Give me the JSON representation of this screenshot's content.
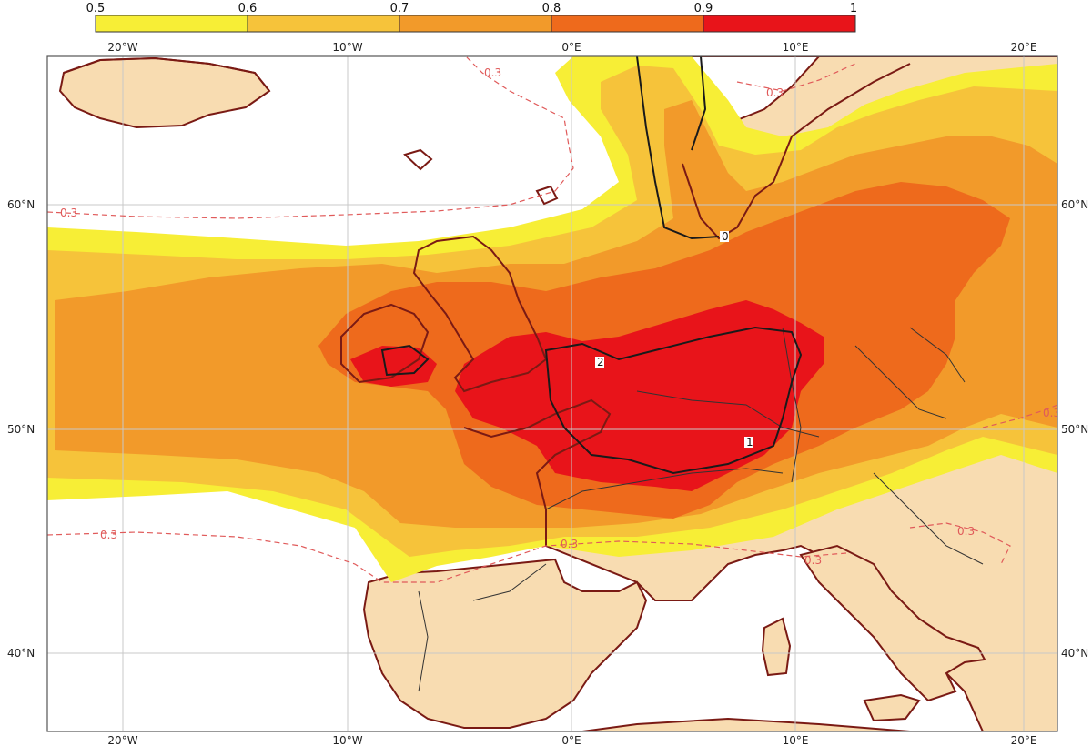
{
  "legend": {
    "ticks": [
      "0.5",
      "0.6",
      "0.7",
      "0.8",
      "0.9",
      "1"
    ],
    "colors": [
      "#f7ee36",
      "#f6c33a",
      "#f29a2a",
      "#ee6a1c",
      "#e8141a"
    ]
  },
  "axes": {
    "top": [
      "20°W",
      "10°W",
      "0°E",
      "10°E",
      "20°E"
    ],
    "bottom": [
      "20°W",
      "10°W",
      "0°E",
      "10°E",
      "20°E"
    ],
    "left": [
      "60°N",
      "50°N",
      "40°N"
    ],
    "right": [
      "60°N",
      "50°N",
      "40°N"
    ]
  },
  "contour_labels": {
    "dashed": [
      "0.3",
      "0.3",
      "0.3",
      "0.3",
      "0.3",
      "0.3",
      "0.3",
      "0.3"
    ],
    "solid": [
      "0",
      "2",
      "1"
    ]
  },
  "colors": {
    "land": "#f8dcb1",
    "coast": "#7a1a14",
    "border": "#333333",
    "dashed_contour": "#e05a5a",
    "solid_contour": "#1a1a1a",
    "ocean": "#ffffff"
  }
}
